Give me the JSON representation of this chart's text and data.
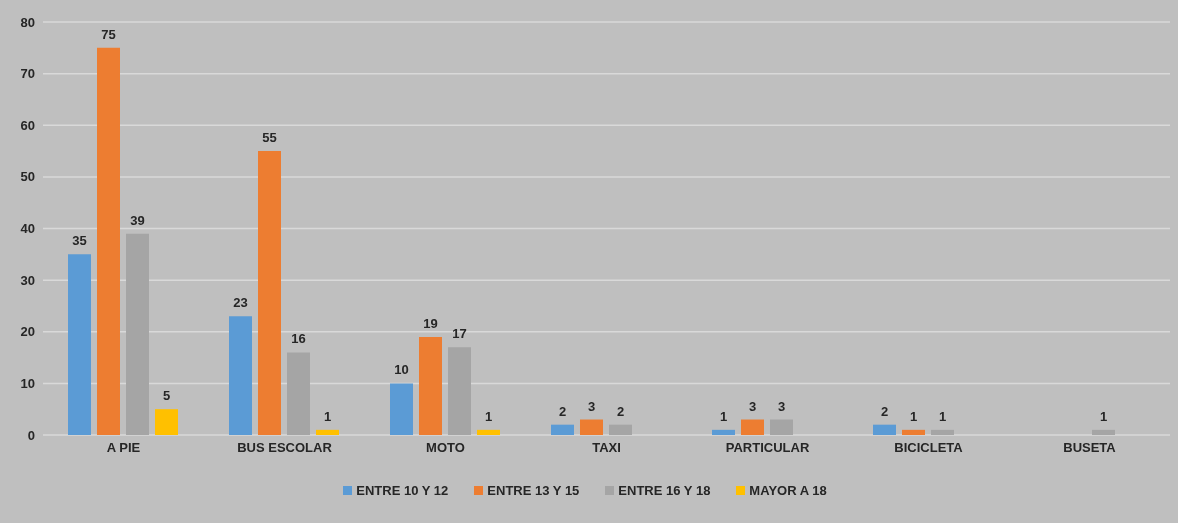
{
  "chart_data": {
    "type": "bar",
    "categories": [
      "A PIE",
      "BUS ESCOLAR",
      "MOTO",
      "TAXI",
      "PARTICULAR",
      "BICICLETA",
      "BUSETA"
    ],
    "series": [
      {
        "name": "ENTRE 10 Y 12",
        "color": "#5b9bd5",
        "values": [
          35,
          23,
          10,
          2,
          1,
          2,
          null
        ]
      },
      {
        "name": "ENTRE 13 Y 15",
        "color": "#ed7d31",
        "values": [
          75,
          55,
          19,
          3,
          3,
          1,
          null
        ]
      },
      {
        "name": "ENTRE 16 Y 18",
        "color": "#a5a5a5",
        "values": [
          39,
          16,
          17,
          2,
          3,
          1,
          1
        ]
      },
      {
        "name": "MAYOR A 18",
        "color": "#ffc000",
        "values": [
          5,
          1,
          1,
          null,
          null,
          null,
          null
        ]
      }
    ],
    "ylim": [
      0,
      80
    ],
    "yticks": [
      0,
      10,
      20,
      30,
      40,
      50,
      60,
      70,
      80
    ],
    "grid": "y",
    "legend": "bottom",
    "data_labels": true
  }
}
